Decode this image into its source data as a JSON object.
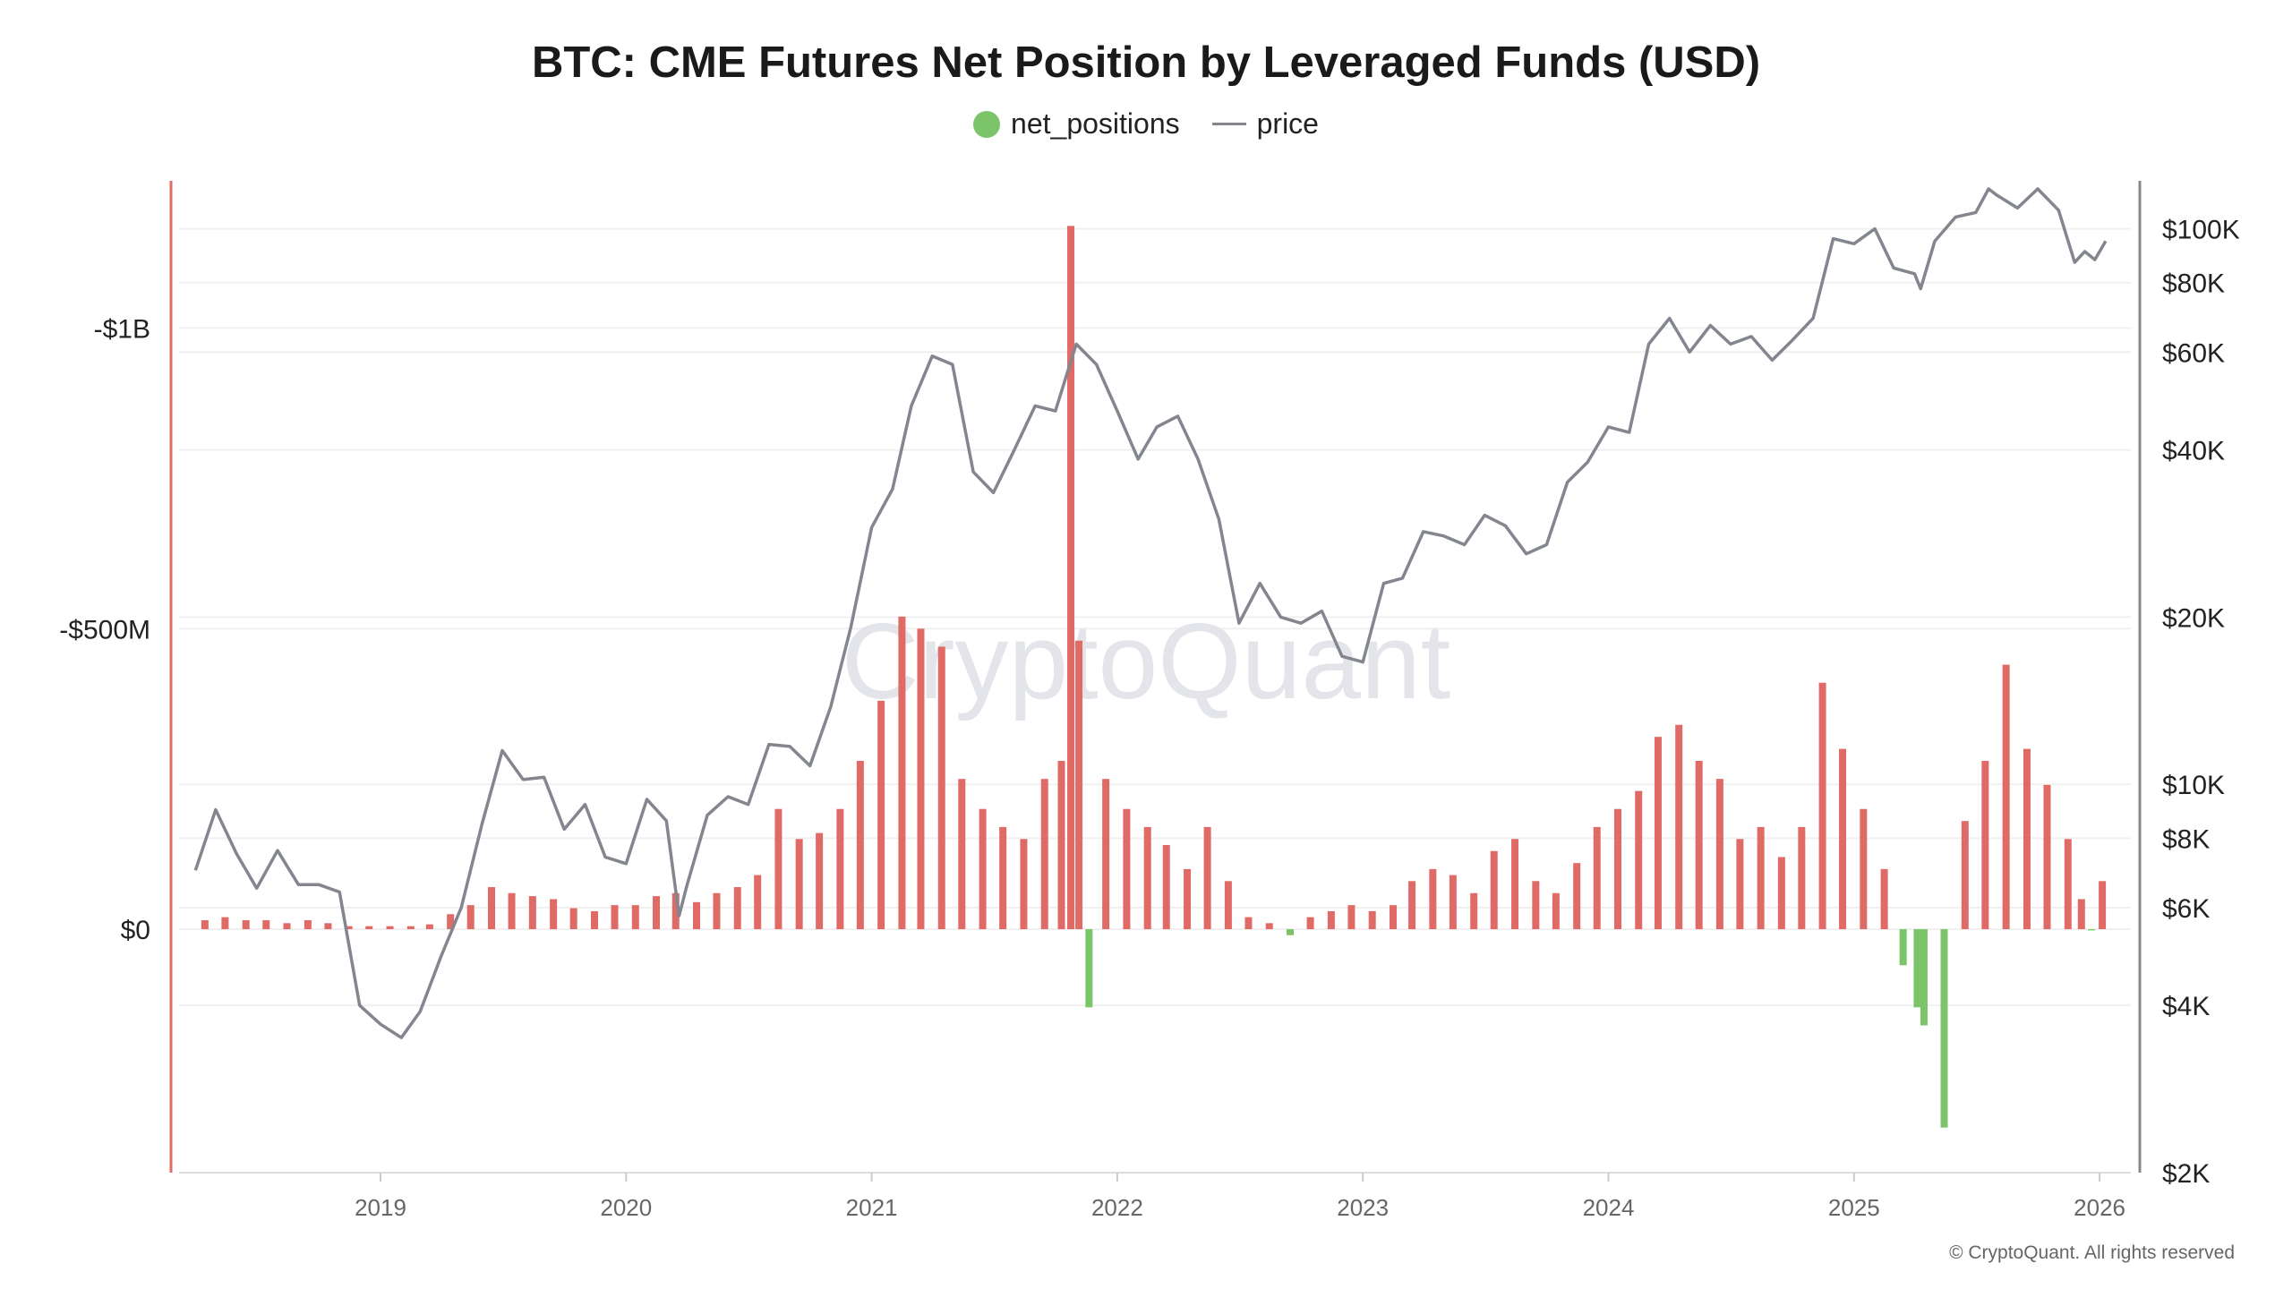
{
  "chart_data": {
    "type": "bar+line",
    "title": "BTC: CME Futures Net Position by Leveraged Funds (USD)",
    "legend": {
      "placement": "top-center",
      "entries": [
        "net_positions",
        "price"
      ]
    },
    "colors": {
      "net_negative": "#e06a66",
      "net_positive": "#7cc46a",
      "price": "#84868f",
      "left_axis_line": "#e06a66",
      "right_axis_line": "#888888",
      "legend_dot": "#7cc46a"
    },
    "x_ticks": [
      "2019",
      "2020",
      "2021",
      "2022",
      "2023",
      "2024",
      "2025",
      "2026"
    ],
    "left_axis": {
      "unit": "USD millions",
      "reversed": true,
      "range": [
        -1245,
        405
      ],
      "ticks": [
        {
          "value": -1000,
          "label": "-$1B"
        },
        {
          "value": -500,
          "label": "-$500M"
        },
        {
          "value": 0,
          "label": "$0"
        }
      ]
    },
    "right_axis": {
      "scale": "log",
      "range": [
        2000,
        122000
      ],
      "ticks": [
        {
          "value": 100000,
          "label": "$100K"
        },
        {
          "value": 80000,
          "label": "$80K"
        },
        {
          "value": 60000,
          "label": "$60K"
        },
        {
          "value": 40000,
          "label": "$40K"
        },
        {
          "value": 20000,
          "label": "$20K"
        },
        {
          "value": 10000,
          "label": "$10K"
        },
        {
          "value": 8000,
          "label": "$8K"
        },
        {
          "value": 6000,
          "label": "$6K"
        },
        {
          "value": 4000,
          "label": "$4K"
        },
        {
          "value": 2000,
          "label": "$2K"
        }
      ]
    },
    "grid": true,
    "series": [
      {
        "name": "net_positions",
        "type": "bar",
        "points": [
          [
            "2018-04-15",
            -15
          ],
          [
            "2018-05-15",
            -20
          ],
          [
            "2018-06-15",
            -15
          ],
          [
            "2018-07-15",
            -15
          ],
          [
            "2018-08-15",
            -10
          ],
          [
            "2018-09-15",
            -15
          ],
          [
            "2018-10-15",
            -10
          ],
          [
            "2018-11-15",
            -5
          ],
          [
            "2018-12-15",
            -5
          ],
          [
            "2019-01-15",
            -5
          ],
          [
            "2019-02-15",
            -5
          ],
          [
            "2019-03-15",
            -8
          ],
          [
            "2019-04-15",
            -25
          ],
          [
            "2019-05-15",
            -40
          ],
          [
            "2019-06-15",
            -70
          ],
          [
            "2019-07-15",
            -60
          ],
          [
            "2019-08-15",
            -55
          ],
          [
            "2019-09-15",
            -50
          ],
          [
            "2019-10-15",
            -35
          ],
          [
            "2019-11-15",
            -30
          ],
          [
            "2019-12-15",
            -40
          ],
          [
            "2020-01-15",
            -40
          ],
          [
            "2020-02-15",
            -55
          ],
          [
            "2020-03-15",
            -60
          ],
          [
            "2020-04-15",
            -45
          ],
          [
            "2020-05-15",
            -60
          ],
          [
            "2020-06-15",
            -70
          ],
          [
            "2020-07-15",
            -90
          ],
          [
            "2020-08-15",
            -200
          ],
          [
            "2020-09-15",
            -150
          ],
          [
            "2020-10-15",
            -160
          ],
          [
            "2020-11-15",
            -200
          ],
          [
            "2020-12-15",
            -280
          ],
          [
            "2021-01-15",
            -380
          ],
          [
            "2021-02-15",
            -520
          ],
          [
            "2021-03-15",
            -500
          ],
          [
            "2021-04-15",
            -470
          ],
          [
            "2021-05-15",
            -250
          ],
          [
            "2021-06-15",
            -200
          ],
          [
            "2021-07-15",
            -170
          ],
          [
            "2021-08-15",
            -150
          ],
          [
            "2021-09-15",
            -250
          ],
          [
            "2021-10-10",
            -280
          ],
          [
            "2021-10-24",
            -1170
          ],
          [
            "2021-11-05",
            -480
          ],
          [
            "2021-11-20",
            130
          ],
          [
            "2021-12-15",
            -250
          ],
          [
            "2022-01-15",
            -200
          ],
          [
            "2022-02-15",
            -170
          ],
          [
            "2022-03-15",
            -140
          ],
          [
            "2022-04-15",
            -100
          ],
          [
            "2022-05-15",
            -170
          ],
          [
            "2022-06-15",
            -80
          ],
          [
            "2022-07-15",
            -20
          ],
          [
            "2022-08-15",
            -10
          ],
          [
            "2022-09-15",
            10
          ],
          [
            "2022-10-15",
            -20
          ],
          [
            "2022-11-15",
            -30
          ],
          [
            "2022-12-15",
            -40
          ],
          [
            "2023-01-15",
            -30
          ],
          [
            "2023-02-15",
            -40
          ],
          [
            "2023-03-15",
            -80
          ],
          [
            "2023-04-15",
            -100
          ],
          [
            "2023-05-15",
            -90
          ],
          [
            "2023-06-15",
            -60
          ],
          [
            "2023-07-15",
            -130
          ],
          [
            "2023-08-15",
            -150
          ],
          [
            "2023-09-15",
            -80
          ],
          [
            "2023-10-15",
            -60
          ],
          [
            "2023-11-15",
            -110
          ],
          [
            "2023-12-15",
            -170
          ],
          [
            "2024-01-15",
            -200
          ],
          [
            "2024-02-15",
            -230
          ],
          [
            "2024-03-15",
            -320
          ],
          [
            "2024-04-15",
            -340
          ],
          [
            "2024-05-15",
            -280
          ],
          [
            "2024-06-15",
            -250
          ],
          [
            "2024-07-15",
            -150
          ],
          [
            "2024-08-15",
            -170
          ],
          [
            "2024-09-15",
            -120
          ],
          [
            "2024-10-15",
            -170
          ],
          [
            "2024-11-15",
            -410
          ],
          [
            "2024-12-15",
            -300
          ],
          [
            "2025-01-15",
            -200
          ],
          [
            "2025-02-15",
            -100
          ],
          [
            "2025-03-15",
            60
          ],
          [
            "2025-04-05",
            130
          ],
          [
            "2025-04-15",
            160
          ],
          [
            "2025-05-15",
            330
          ],
          [
            "2025-06-15",
            -180
          ],
          [
            "2025-07-15",
            -280
          ],
          [
            "2025-08-15",
            -440
          ],
          [
            "2025-09-15",
            -300
          ],
          [
            "2025-10-15",
            -240
          ],
          [
            "2025-11-15",
            -150
          ],
          [
            "2025-12-05",
            -50
          ],
          [
            "2025-12-20",
            2
          ],
          [
            "2026-01-05",
            -80
          ]
        ]
      },
      {
        "name": "price",
        "type": "line",
        "axis": "right",
        "points": [
          [
            "2018-04-01",
            7000
          ],
          [
            "2018-05-01",
            9000
          ],
          [
            "2018-06-01",
            7500
          ],
          [
            "2018-07-01",
            6500
          ],
          [
            "2018-08-01",
            7600
          ],
          [
            "2018-09-01",
            6600
          ],
          [
            "2018-10-01",
            6600
          ],
          [
            "2018-11-01",
            6400
          ],
          [
            "2018-12-01",
            4000
          ],
          [
            "2019-01-01",
            3700
          ],
          [
            "2019-02-01",
            3500
          ],
          [
            "2019-03-01",
            3900
          ],
          [
            "2019-04-01",
            4900
          ],
          [
            "2019-05-01",
            6000
          ],
          [
            "2019-06-01",
            8500
          ],
          [
            "2019-07-01",
            11500
          ],
          [
            "2019-08-01",
            10200
          ],
          [
            "2019-09-01",
            10300
          ],
          [
            "2019-10-01",
            8300
          ],
          [
            "2019-11-01",
            9200
          ],
          [
            "2019-12-01",
            7400
          ],
          [
            "2020-01-01",
            7200
          ],
          [
            "2020-02-01",
            9400
          ],
          [
            "2020-03-01",
            8600
          ],
          [
            "2020-03-20",
            5800
          ],
          [
            "2020-04-01",
            6600
          ],
          [
            "2020-05-01",
            8800
          ],
          [
            "2020-06-01",
            9500
          ],
          [
            "2020-07-01",
            9200
          ],
          [
            "2020-08-01",
            11800
          ],
          [
            "2020-09-01",
            11700
          ],
          [
            "2020-10-01",
            10800
          ],
          [
            "2020-11-01",
            13800
          ],
          [
            "2020-12-01",
            19200
          ],
          [
            "2021-01-01",
            29000
          ],
          [
            "2021-02-01",
            34000
          ],
          [
            "2021-03-01",
            48000
          ],
          [
            "2021-04-01",
            59000
          ],
          [
            "2021-05-01",
            57000
          ],
          [
            "2021-06-01",
            36500
          ],
          [
            "2021-07-01",
            33500
          ],
          [
            "2021-08-01",
            40000
          ],
          [
            "2021-09-01",
            48000
          ],
          [
            "2021-10-01",
            47000
          ],
          [
            "2021-11-01",
            62000
          ],
          [
            "2021-12-01",
            57000
          ],
          [
            "2022-01-01",
            47000
          ],
          [
            "2022-02-01",
            38500
          ],
          [
            "2022-03-01",
            44000
          ],
          [
            "2022-04-01",
            46000
          ],
          [
            "2022-05-01",
            38500
          ],
          [
            "2022-06-01",
            30000
          ],
          [
            "2022-07-01",
            19500
          ],
          [
            "2022-08-01",
            23000
          ],
          [
            "2022-09-01",
            20000
          ],
          [
            "2022-10-01",
            19500
          ],
          [
            "2022-11-01",
            20500
          ],
          [
            "2022-12-01",
            17000
          ],
          [
            "2023-01-01",
            16600
          ],
          [
            "2023-02-01",
            23000
          ],
          [
            "2023-03-01",
            23500
          ],
          [
            "2023-04-01",
            28500
          ],
          [
            "2023-05-01",
            28000
          ],
          [
            "2023-06-01",
            27000
          ],
          [
            "2023-07-01",
            30500
          ],
          [
            "2023-08-01",
            29200
          ],
          [
            "2023-09-01",
            26000
          ],
          [
            "2023-10-01",
            27000
          ],
          [
            "2023-11-01",
            35000
          ],
          [
            "2023-12-01",
            38000
          ],
          [
            "2024-01-01",
            44000
          ],
          [
            "2024-02-01",
            43000
          ],
          [
            "2024-03-01",
            62000
          ],
          [
            "2024-04-01",
            69000
          ],
          [
            "2024-05-01",
            60000
          ],
          [
            "2024-06-01",
            67000
          ],
          [
            "2024-07-01",
            62000
          ],
          [
            "2024-08-01",
            64000
          ],
          [
            "2024-09-01",
            58000
          ],
          [
            "2024-10-01",
            63000
          ],
          [
            "2024-11-01",
            69000
          ],
          [
            "2024-12-01",
            96000
          ],
          [
            "2025-01-01",
            94000
          ],
          [
            "2025-02-01",
            100000
          ],
          [
            "2025-03-01",
            85000
          ],
          [
            "2025-04-01",
            83000
          ],
          [
            "2025-04-10",
            78000
          ],
          [
            "2025-05-01",
            95000
          ],
          [
            "2025-06-01",
            105000
          ],
          [
            "2025-07-01",
            107000
          ],
          [
            "2025-07-20",
            118000
          ],
          [
            "2025-08-01",
            115000
          ],
          [
            "2025-09-01",
            109000
          ],
          [
            "2025-10-01",
            118000
          ],
          [
            "2025-11-01",
            108000
          ],
          [
            "2025-11-25",
            87000
          ],
          [
            "2025-12-10",
            91000
          ],
          [
            "2025-12-25",
            88000
          ],
          [
            "2026-01-10",
            95000
          ]
        ]
      }
    ]
  },
  "watermark": "CryptoQuant",
  "copyright": "© CryptoQuant. All rights reserved"
}
